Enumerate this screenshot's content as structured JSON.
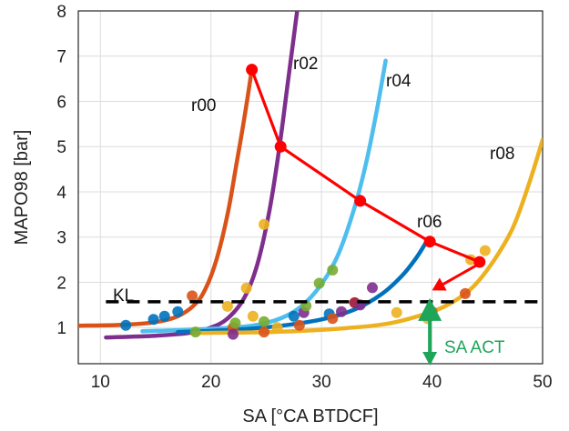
{
  "chart_data": {
    "type": "line",
    "xlabel": "SA [°CA BTDCF]",
    "ylabel": "MAPO98 [bar]",
    "xlim": [
      8,
      50
    ],
    "ylim": [
      0.2,
      8
    ],
    "xticks": [
      10,
      20,
      30,
      40,
      50
    ],
    "yticks": [
      1,
      2,
      3,
      4,
      5,
      6,
      7,
      8
    ],
    "grid": true,
    "series": [
      {
        "name": "r00",
        "color": "#d95319",
        "x": [
          8.0,
          12.0,
          15.0,
          17.0,
          18.5,
          19.5,
          20.5,
          21.5,
          22.3,
          23.0,
          23.7
        ],
        "y": [
          1.04,
          1.06,
          1.12,
          1.25,
          1.5,
          1.85,
          2.5,
          3.5,
          4.6,
          5.6,
          6.7
        ]
      },
      {
        "name": "r02",
        "color": "#7e2f8e",
        "x": [
          10.5,
          15.0,
          18.0,
          20.0,
          21.5,
          23.0,
          24.2,
          25.3,
          26.2,
          27.0,
          27.8
        ],
        "y": [
          0.78,
          0.82,
          0.88,
          1.0,
          1.2,
          1.65,
          2.4,
          3.6,
          5.0,
          6.5,
          8.0
        ]
      },
      {
        "name": "r04",
        "color": "#4dbeee",
        "x": [
          13.8,
          18.0,
          22.0,
          25.0,
          27.5,
          29.5,
          31.3,
          32.8,
          34.0,
          35.0,
          35.8
        ],
        "y": [
          0.92,
          0.95,
          1.0,
          1.1,
          1.35,
          1.8,
          2.5,
          3.5,
          4.6,
          5.8,
          6.9
        ]
      },
      {
        "name": "r06",
        "color": "#0072bd",
        "x": [
          17.0,
          22.0,
          26.0,
          30.0,
          33.0,
          35.5,
          37.3,
          38.6,
          39.5
        ],
        "y": [
          0.9,
          0.95,
          1.03,
          1.18,
          1.4,
          1.75,
          2.15,
          2.55,
          2.9
        ]
      },
      {
        "name": "r08",
        "color": "#edb120",
        "x": [
          18.5,
          25.0,
          30.0,
          35.0,
          38.0,
          41.0,
          43.5,
          45.5,
          47.3,
          48.8,
          50.0
        ],
        "y": [
          0.88,
          0.9,
          0.95,
          1.05,
          1.2,
          1.45,
          1.85,
          2.45,
          3.2,
          4.2,
          5.15
        ]
      },
      {
        "name": "",
        "color": "#ff0000",
        "role": "peak-connector",
        "x": [
          23.7,
          26.3,
          33.5,
          39.8,
          44.3
        ],
        "y": [
          6.7,
          5.0,
          3.8,
          2.9,
          2.45
        ]
      }
    ],
    "scatter_points": [
      {
        "x": 12.3,
        "y": 1.05,
        "color": "#0072bd"
      },
      {
        "x": 14.8,
        "y": 1.18,
        "color": "#0072bd"
      },
      {
        "x": 15.8,
        "y": 1.25,
        "color": "#0072bd"
      },
      {
        "x": 17.0,
        "y": 1.35,
        "color": "#0072bd"
      },
      {
        "x": 18.3,
        "y": 1.7,
        "color": "#d95319"
      },
      {
        "x": 18.6,
        "y": 0.9,
        "color": "#77ac30"
      },
      {
        "x": 21.5,
        "y": 1.47,
        "color": "#edb120"
      },
      {
        "x": 22.0,
        "y": 1.0,
        "color": "#d95319"
      },
      {
        "x": 22.0,
        "y": 0.85,
        "color": "#7e2f8e"
      },
      {
        "x": 22.2,
        "y": 1.1,
        "color": "#77ac30"
      },
      {
        "x": 23.2,
        "y": 1.87,
        "color": "#edb120"
      },
      {
        "x": 23.8,
        "y": 1.25,
        "color": "#edb120"
      },
      {
        "x": 24.8,
        "y": 3.28,
        "color": "#edb120"
      },
      {
        "x": 24.8,
        "y": 1.13,
        "color": "#77ac30"
      },
      {
        "x": 24.8,
        "y": 0.9,
        "color": "#d95319"
      },
      {
        "x": 26.0,
        "y": 1.0,
        "color": "#edb120"
      },
      {
        "x": 27.5,
        "y": 1.25,
        "color": "#0072bd"
      },
      {
        "x": 28.0,
        "y": 1.05,
        "color": "#d95319"
      },
      {
        "x": 28.4,
        "y": 1.33,
        "color": "#7e2f8e"
      },
      {
        "x": 28.6,
        "y": 1.48,
        "color": "#77ac30"
      },
      {
        "x": 29.8,
        "y": 1.98,
        "color": "#77ac30"
      },
      {
        "x": 30.7,
        "y": 1.3,
        "color": "#0072bd"
      },
      {
        "x": 31.0,
        "y": 1.2,
        "color": "#d95319"
      },
      {
        "x": 31.0,
        "y": 2.27,
        "color": "#77ac30"
      },
      {
        "x": 31.8,
        "y": 1.35,
        "color": "#7e2f8e"
      },
      {
        "x": 33.0,
        "y": 1.55,
        "color": "#a2142f"
      },
      {
        "x": 33.5,
        "y": 1.5,
        "color": "#7e2f8e"
      },
      {
        "x": 34.6,
        "y": 1.88,
        "color": "#7e2f8e"
      },
      {
        "x": 36.8,
        "y": 1.33,
        "color": "#edb120"
      },
      {
        "x": 39.6,
        "y": 1.2,
        "color": "#edb120"
      },
      {
        "x": 40.0,
        "y": 1.35,
        "color": "#d95319"
      },
      {
        "x": 43.0,
        "y": 1.75,
        "color": "#d95319"
      },
      {
        "x": 43.5,
        "y": 2.5,
        "color": "#edb120"
      },
      {
        "x": 44.8,
        "y": 2.7,
        "color": "#edb120"
      }
    ],
    "reference_line": {
      "label": "KL",
      "y": 1.57,
      "style": "dashed",
      "color": "#000000"
    },
    "arrows": [
      {
        "from_x": 44.2,
        "from_y": 2.4,
        "to_x": 40.0,
        "to_y": 1.82,
        "color": "#ff0000"
      },
      {
        "label": "SA ACT",
        "x": 39.8,
        "from_y": 0.2,
        "to_y": 1.57,
        "color": "#1fa55a"
      }
    ]
  }
}
